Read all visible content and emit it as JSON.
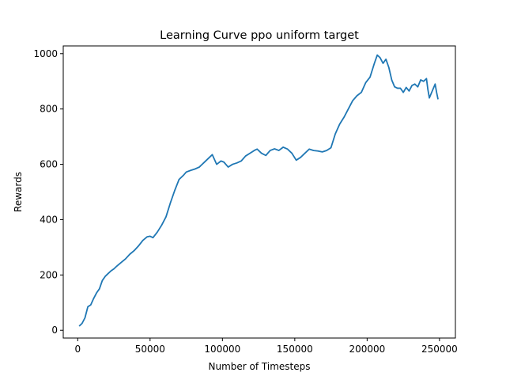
{
  "chart_data": {
    "type": "line",
    "title": "Learning Curve ppo uniform target",
    "xlabel": "Number of Timesteps",
    "ylabel": "Rewards",
    "xlim": [
      -10000,
      261000
    ],
    "ylim": [
      -28,
      1028
    ],
    "xticks": [
      0,
      50000,
      100000,
      150000,
      200000,
      250000
    ],
    "yticks": [
      0,
      200,
      400,
      600,
      800,
      1000
    ],
    "grid": false,
    "line_color": "#1f77b4",
    "series": [
      {
        "x": [
          1000,
          3000,
          5000,
          7000,
          9000,
          11000,
          13000,
          15000,
          17000,
          19000,
          21000,
          23000,
          25000,
          27000,
          30000,
          33000,
          36000,
          39000,
          42000,
          45000,
          48000,
          50000,
          52000,
          55000,
          58000,
          61000,
          64000,
          67000,
          70000,
          73000,
          75000,
          78000,
          81000,
          84000,
          87000,
          90000,
          93000,
          96000,
          99000,
          101000,
          104000,
          107000,
          110000,
          113000,
          116000,
          119000,
          122000,
          124000,
          127000,
          130000,
          133000,
          136000,
          139000,
          142000,
          145000,
          148000,
          151000,
          154000,
          157000,
          160000,
          163000,
          166000,
          169000,
          172000,
          175000,
          178000,
          181000,
          184000,
          187000,
          190000,
          193000,
          196000,
          199000,
          202000,
          205000,
          207000,
          209000,
          211000,
          213000,
          215000,
          217000,
          219000,
          221000,
          223000,
          225000,
          227000,
          229000,
          231000,
          233000,
          235000,
          237000,
          239000,
          241000,
          242000,
          243000,
          245000,
          247000,
          248000,
          249000
        ],
        "y": [
          15,
          25,
          45,
          85,
          92,
          115,
          135,
          150,
          180,
          195,
          205,
          215,
          222,
          232,
          245,
          258,
          275,
          288,
          305,
          325,
          338,
          340,
          335,
          355,
          380,
          410,
          460,
          505,
          545,
          560,
          572,
          578,
          583,
          590,
          605,
          620,
          635,
          600,
          612,
          608,
          590,
          600,
          605,
          612,
          630,
          640,
          650,
          655,
          640,
          632,
          650,
          656,
          650,
          662,
          655,
          640,
          615,
          625,
          640,
          655,
          650,
          648,
          645,
          650,
          660,
          710,
          745,
          770,
          800,
          830,
          848,
          860,
          895,
          915,
          965,
          995,
          985,
          965,
          980,
          950,
          905,
          880,
          875,
          875,
          860,
          878,
          865,
          885,
          890,
          880,
          905,
          900,
          910,
          870,
          840,
          865,
          890,
          860,
          835
        ]
      }
    ]
  }
}
